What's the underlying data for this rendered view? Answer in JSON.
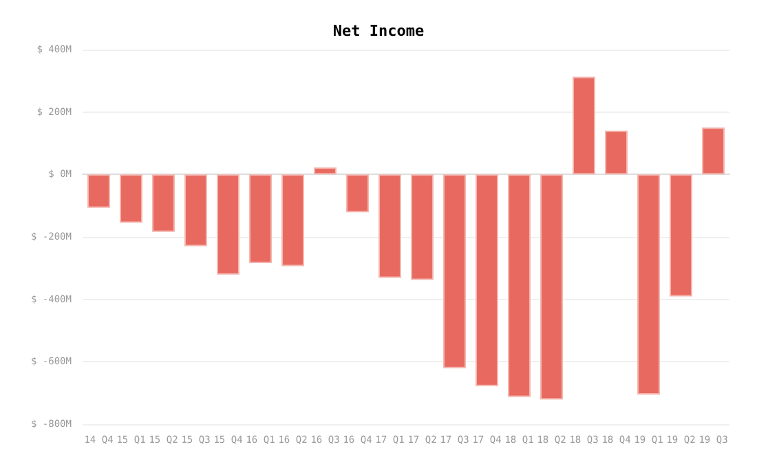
{
  "chart_data": {
    "type": "bar",
    "title": "Net Income",
    "categories": [
      "14 Q4",
      "15 Q1",
      "15 Q2",
      "15 Q3",
      "15 Q4",
      "16 Q1",
      "16 Q2",
      "16 Q3",
      "16 Q4",
      "17 Q1",
      "17 Q2",
      "17 Q3",
      "17 Q4",
      "18 Q1",
      "18 Q2",
      "18 Q3",
      "18 Q4",
      "19 Q1",
      "19 Q2",
      "19 Q3"
    ],
    "values": [
      -107,
      -155,
      -184,
      -230,
      -321,
      -284,
      -294,
      22,
      -121,
      -331,
      -338,
      -621,
      -678,
      -713,
      -721,
      313,
      140,
      -705,
      -391,
      150
    ],
    "color": "#e8695f",
    "ylim": [
      -800,
      400
    ],
    "yticks": [
      {
        "value": 400,
        "label": "$ 400M"
      },
      {
        "value": 200,
        "label": "$ 200M"
      },
      {
        "value": 0,
        "label": "$ 0M"
      },
      {
        "value": -200,
        "label": "$ -200M"
      },
      {
        "value": -400,
        "label": "$ -400M"
      },
      {
        "value": -600,
        "label": "$ -600M"
      },
      {
        "value": -800,
        "label": "$ -800M"
      }
    ],
    "grid": "y"
  }
}
